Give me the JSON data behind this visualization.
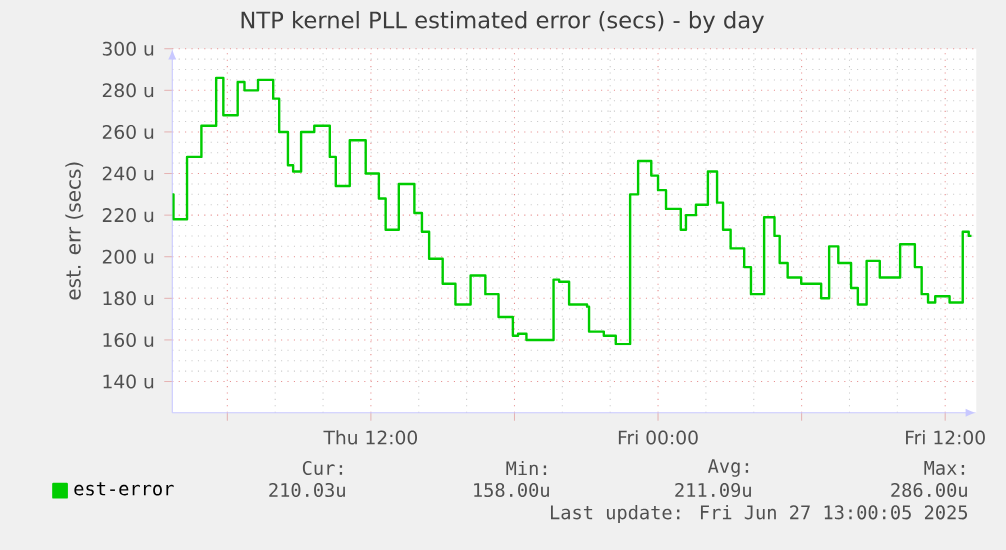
{
  "chart_data": {
    "type": "step",
    "title": "NTP kernel PLL estimated error (secs) - by day",
    "ylabel": "est. err (secs)",
    "x": [
      "2025-06-26T03:42",
      "2025-06-26T03:45",
      "2025-06-26T04:19",
      "2025-06-26T04:55",
      "2025-06-26T05:32",
      "2025-06-26T05:50",
      "2025-06-26T06:26",
      "2025-06-26T06:43",
      "2025-06-26T07:17",
      "2025-06-26T07:55",
      "2025-06-26T08:10",
      "2025-06-26T08:32",
      "2025-06-26T08:45",
      "2025-06-26T09:05",
      "2025-06-26T09:38",
      "2025-06-26T10:17",
      "2025-06-26T10:32",
      "2025-06-26T11:07",
      "2025-06-26T11:47",
      "2025-06-26T12:20",
      "2025-06-26T12:37",
      "2025-06-26T13:10",
      "2025-06-26T13:49",
      "2025-06-26T14:08",
      "2025-06-26T14:26",
      "2025-06-26T15:00",
      "2025-06-26T15:32",
      "2025-06-26T16:10",
      "2025-06-26T16:47",
      "2025-06-26T17:20",
      "2025-06-26T17:56",
      "2025-06-26T18:09",
      "2025-06-26T18:30",
      "2025-06-26T19:38",
      "2025-06-26T19:52",
      "2025-06-26T20:17",
      "2025-06-26T21:02",
      "2025-06-26T21:07",
      "2025-06-26T21:44",
      "2025-06-26T22:14",
      "2025-06-26T22:50",
      "2025-06-26T23:10",
      "2025-06-26T23:43",
      "2025-06-27T00:00",
      "2025-06-27T00:20",
      "2025-06-27T00:57",
      "2025-06-27T01:10",
      "2025-06-27T01:35",
      "2025-06-27T02:05",
      "2025-06-27T02:28",
      "2025-06-27T02:43",
      "2025-06-27T03:02",
      "2025-06-27T03:36",
      "2025-06-27T03:53",
      "2025-06-27T04:26",
      "2025-06-27T04:52",
      "2025-06-27T05:05",
      "2025-06-27T05:25",
      "2025-06-27T05:59",
      "2025-06-27T06:49",
      "2025-06-27T07:09",
      "2025-06-27T07:32",
      "2025-06-27T08:04",
      "2025-06-27T08:21",
      "2025-06-27T08:43",
      "2025-06-27T09:16",
      "2025-06-27T10:07",
      "2025-06-27T10:44",
      "2025-06-27T11:01",
      "2025-06-27T11:17",
      "2025-06-27T11:35",
      "2025-06-27T12:11",
      "2025-06-27T12:44",
      "2025-06-27T12:59",
      "2025-06-27T13:06"
    ],
    "series": [
      {
        "name": "est-error",
        "color": "#00cc00",
        "values": [
          230,
          218,
          248,
          263,
          286,
          268,
          284,
          280,
          285,
          276,
          260,
          244,
          241,
          260,
          263,
          248,
          234,
          256,
          240,
          228,
          213,
          235,
          221,
          212,
          199,
          187,
          177,
          191,
          182,
          171,
          162,
          163,
          160,
          189,
          188,
          177,
          176,
          164,
          162,
          158,
          230,
          246,
          239,
          232,
          223,
          213,
          220,
          225,
          241,
          226,
          213,
          204,
          195,
          182,
          219,
          210,
          197,
          190,
          187,
          180,
          205,
          197,
          185,
          177,
          198,
          190,
          206,
          195,
          182,
          178,
          181,
          178,
          212,
          210,
          210
        ]
      }
    ],
    "xlim": [
      "2025-06-26T03:42",
      "2025-06-27T13:18"
    ],
    "ylim": [
      125,
      300
    ],
    "xticks": [
      {
        "value": "2025-06-26T06:00",
        "label": null
      },
      {
        "value": "2025-06-26T12:00",
        "label": "Thu 12:00"
      },
      {
        "value": "2025-06-26T18:00",
        "label": null
      },
      {
        "value": "2025-06-27T00:00",
        "label": "Fri 00:00"
      },
      {
        "value": "2025-06-27T06:00",
        "label": null
      },
      {
        "value": "2025-06-27T12:00",
        "label": "Fri 12:00"
      }
    ],
    "yticks": [
      {
        "value": 140,
        "label": "140 u"
      },
      {
        "value": 160,
        "label": "160 u"
      },
      {
        "value": 180,
        "label": "180 u"
      },
      {
        "value": 200,
        "label": "200 u"
      },
      {
        "value": 220,
        "label": "220 u"
      },
      {
        "value": 240,
        "label": "240 u"
      },
      {
        "value": 260,
        "label": "260 u"
      },
      {
        "value": 280,
        "label": "280 u"
      },
      {
        "value": 300,
        "label": "300 u"
      }
    ],
    "grid": true,
    "legend": "bottom left",
    "annotations": [
      "Cur:",
      "Min:",
      "Avg:",
      "Max:",
      "210.03u",
      "158.00u",
      "211.09u",
      "286.00u",
      "Last update: Fri Jun 27 13:00:05 2025"
    ]
  }
}
